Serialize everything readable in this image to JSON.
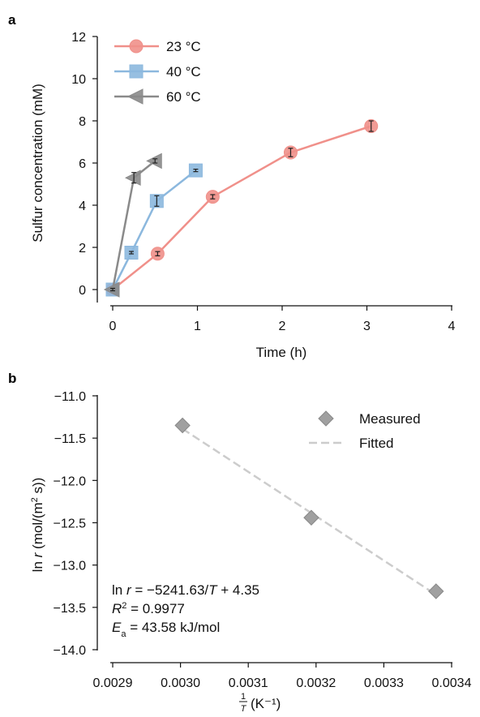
{
  "panels": {
    "a": {
      "letter": "a"
    },
    "b": {
      "letter": "b"
    }
  },
  "chart_data": [
    {
      "type": "line",
      "panel": "a",
      "xlabel": "Time (h)",
      "ylabel": "Sulfur concentration (mM)",
      "xlim": [
        0,
        4
      ],
      "ylim": [
        0,
        12
      ],
      "xticks": [
        0,
        1,
        2,
        3,
        4
      ],
      "yticks": [
        0,
        2,
        4,
        6,
        8,
        10,
        12
      ],
      "grid": false,
      "legend_position": "top-left",
      "series": [
        {
          "name": "23 °C",
          "marker": "circle",
          "color": "#f0908a",
          "x": [
            0,
            0.53,
            1.18,
            2.1,
            3.05
          ],
          "y": [
            0,
            1.7,
            4.4,
            6.5,
            7.75
          ],
          "err": [
            0.05,
            0.1,
            0.1,
            0.2,
            0.25
          ]
        },
        {
          "name": "40 °C",
          "marker": "square",
          "color": "#8cb8de",
          "x": [
            0,
            0.22,
            0.52,
            0.98
          ],
          "y": [
            0,
            1.75,
            4.2,
            5.65
          ],
          "err": [
            0.05,
            0.05,
            0.25,
            0.05
          ]
        },
        {
          "name": "60 °C",
          "marker": "triangle-left",
          "color": "#8a8a8a",
          "x": [
            0,
            0.25,
            0.5
          ],
          "y": [
            0,
            5.3,
            6.1
          ],
          "err": [
            0.05,
            0.25,
            0.1
          ]
        }
      ]
    },
    {
      "type": "scatter",
      "panel": "b",
      "xlabel_unit": "(K⁻¹)",
      "xlim": [
        0.0029,
        0.0034
      ],
      "ylim": [
        -14.0,
        -11.0
      ],
      "xticks": [
        "0.0029",
        "0.0030",
        "0.0031",
        "0.0032",
        "0.0033",
        "0.0034"
      ],
      "yticks": [
        "−11.0",
        "−11.5",
        "−12.0",
        "−12.5",
        "−13.0",
        "−13.5",
        "−14.0"
      ],
      "grid": false,
      "legend_position": "top-right",
      "series": [
        {
          "name": "Measured",
          "marker": "diamond",
          "color": "#a0a0a0",
          "x": [
            0.003003,
            0.003193,
            0.003377
          ],
          "y": [
            -11.35,
            -12.44,
            -13.31
          ]
        },
        {
          "name": "Fitted",
          "style": "dashed",
          "color": "#cccccc",
          "x": [
            0.003003,
            0.003377
          ],
          "y": [
            -11.39,
            -13.35
          ]
        }
      ],
      "annotation": {
        "line1": "ln r = −5241.63/T + 4.35",
        "line2": "R² = 0.9977",
        "line3": "Ea = 43.58 kJ/mol"
      }
    }
  ]
}
